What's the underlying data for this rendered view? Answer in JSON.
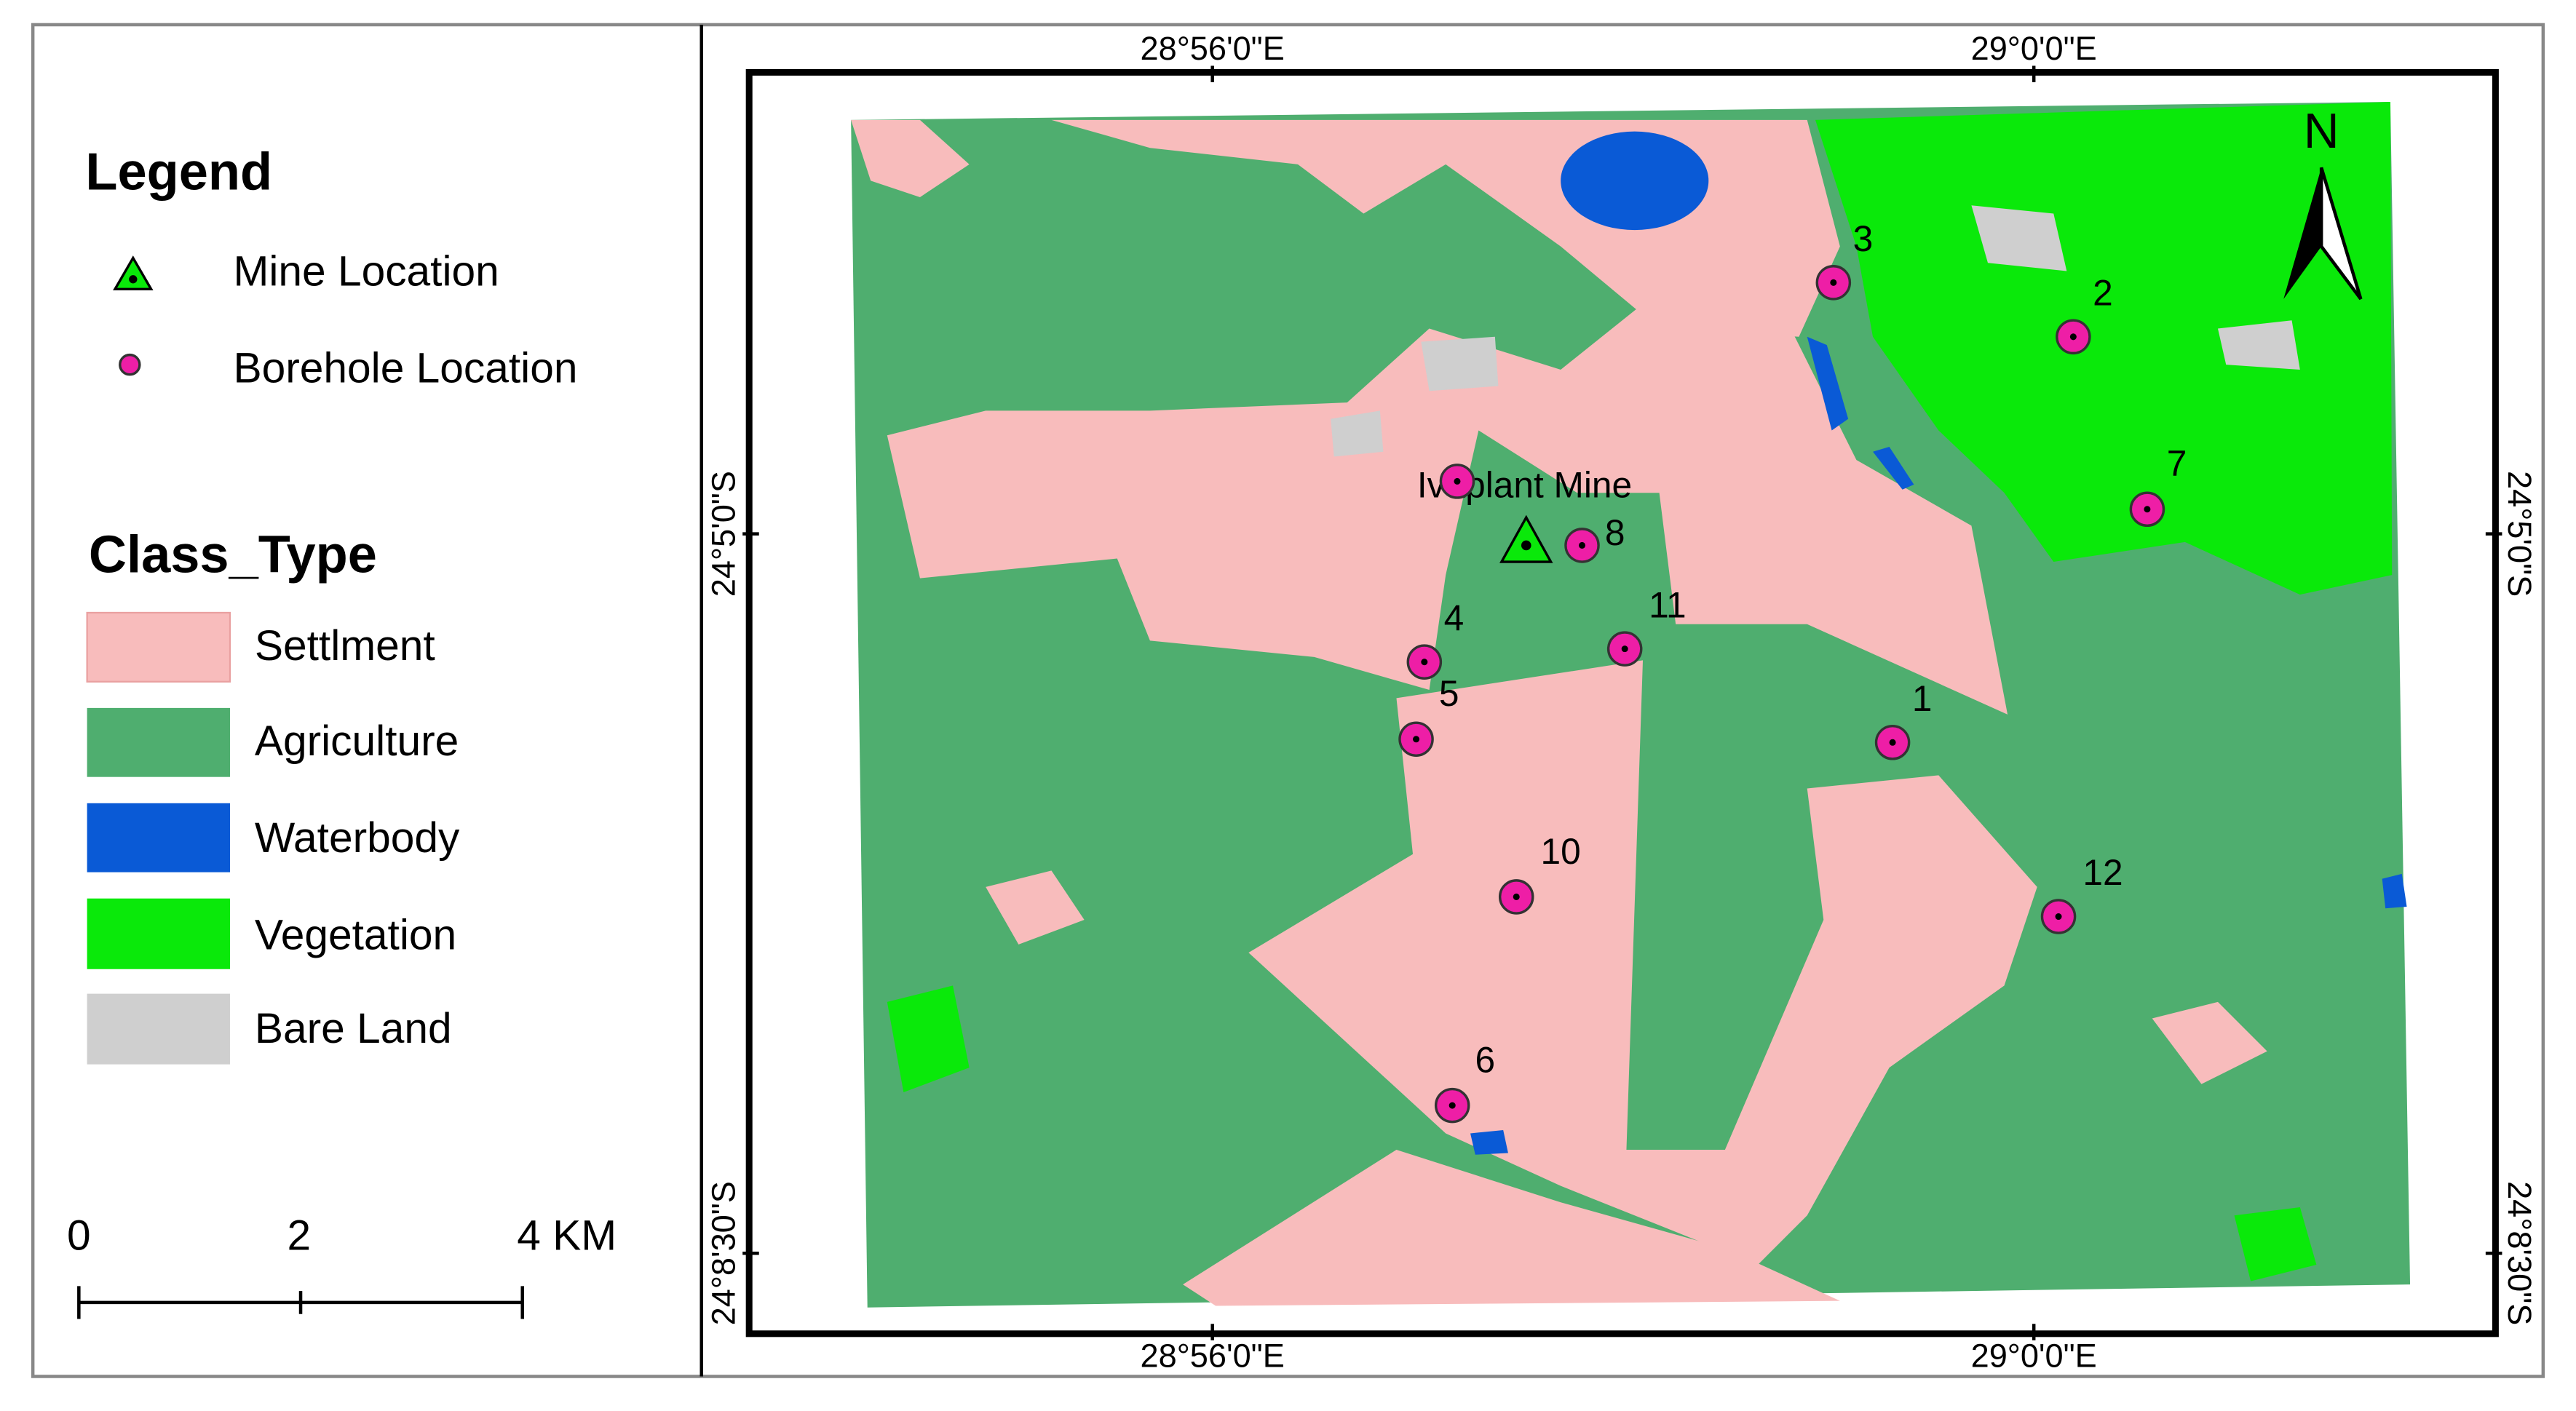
{
  "legend": {
    "title": "Legend",
    "items": [
      "Mine Location",
      "Borehole Location"
    ]
  },
  "class_type": {
    "title": "Class_Type",
    "classes": [
      "Settlment",
      "Agriculture",
      "Waterbody",
      "Vegetation",
      "Bare Land"
    ]
  },
  "scale_bar": {
    "labels": [
      "0",
      "2",
      "4 KM"
    ]
  },
  "coordinates": {
    "top": [
      "28°56'0\"E",
      "29°0'0\"E"
    ],
    "bottom": [
      "28°56'0\"E",
      "29°0'0\"E"
    ],
    "left": [
      "24°5'0\"S",
      "24°8'30\"S"
    ],
    "right": [
      "24°5'0\"S",
      "24°8'30\"S"
    ]
  },
  "map": {
    "north": "N",
    "mine_label": "Ivaplant Mine",
    "boreholes": [
      "1",
      "2",
      "3",
      "4",
      "5",
      "6",
      "7",
      "8",
      "10",
      "11",
      "12"
    ]
  }
}
